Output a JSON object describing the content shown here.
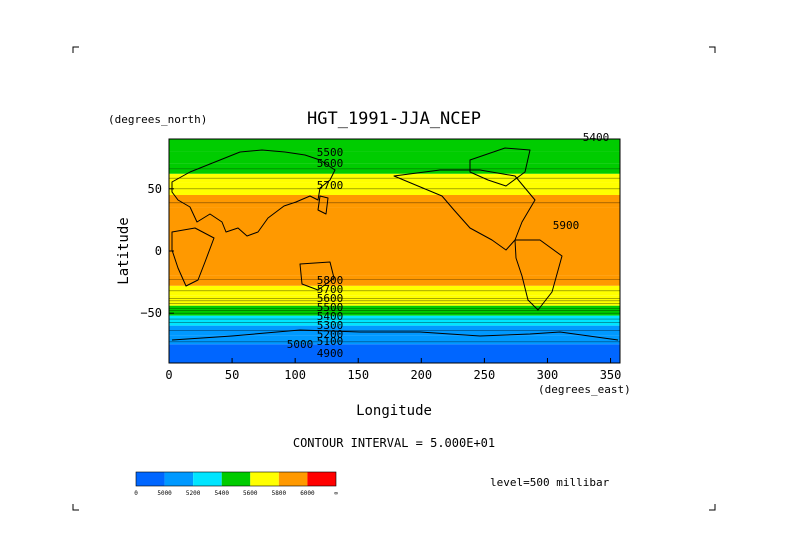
{
  "chart_data": {
    "type": "heatmap",
    "title": "HGT_1991-JJA_NCEP",
    "xlabel": "Longitude",
    "ylabel": "Latitude",
    "x_units": "(degrees_east)",
    "y_units": "(degrees_north)",
    "xlim": [
      0,
      357.5
    ],
    "ylim": [
      -90,
      90
    ],
    "x_ticks": [
      0,
      50,
      100,
      150,
      200,
      250,
      300,
      350
    ],
    "y_ticks": [
      50,
      0,
      -50
    ],
    "y_tick_labels": [
      "50",
      "0",
      "−50"
    ],
    "contour_interval_text": "CONTOUR INTERVAL = 5.000E+01",
    "level_text": "level=500 millibar",
    "contour_labels": [
      "5400",
      "5500",
      "5600",
      "5700",
      "5900",
      "5800",
      "5700",
      "5600",
      "5500",
      "5400",
      "5300",
      "5200",
      "5100",
      "5000",
      "4900"
    ],
    "colorbar": {
      "colors": [
        "#0066ff",
        "#0099ff",
        "#00e5ff",
        "#00cc00",
        "#ffff00",
        "#ff9900",
        "#ff0000"
      ],
      "labels": [
        "0",
        "5000",
        "5200",
        "5400",
        "5600",
        "5800",
        "6000",
        "∞"
      ]
    },
    "latitude_profile": [
      {
        "lat": 90,
        "value": 5480
      },
      {
        "lat": 80,
        "value": 5480
      },
      {
        "lat": 70,
        "value": 5500
      },
      {
        "lat": 62,
        "value": 5600
      },
      {
        "lat": 55,
        "value": 5700
      },
      {
        "lat": 45,
        "value": 5800
      },
      {
        "lat": 35,
        "value": 5880
      },
      {
        "lat": -20,
        "value": 5880
      },
      {
        "lat": -28,
        "value": 5800
      },
      {
        "lat": -36,
        "value": 5700
      },
      {
        "lat": -44,
        "value": 5500
      },
      {
        "lat": -52,
        "value": 5300
      },
      {
        "lat": -60,
        "value": 5150
      },
      {
        "lat": -68,
        "value": 5050
      },
      {
        "lat": -75,
        "value": 4980
      },
      {
        "lat": -90,
        "value": 4950
      }
    ]
  }
}
